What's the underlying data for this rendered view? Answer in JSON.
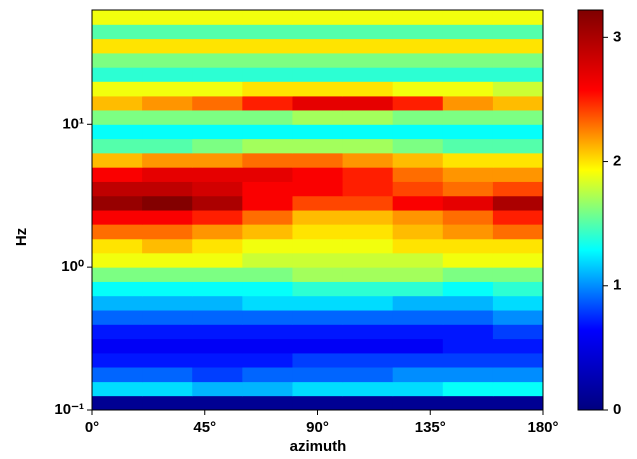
{
  "chart_data": {
    "type": "heatmap",
    "xlabel": "azimuth",
    "ylabel": "Hz",
    "x_bins": [
      0,
      20,
      40,
      60,
      80,
      100,
      120,
      140,
      160,
      180
    ],
    "y_bins": [
      0.1,
      0.126,
      0.158,
      0.2,
      0.251,
      0.316,
      0.398,
      0.501,
      0.631,
      0.794,
      1,
      1.26,
      1.58,
      2,
      2.51,
      3.16,
      3.98,
      5.01,
      6.31,
      7.94,
      10,
      12.6,
      15.8,
      20,
      25.1,
      31.6,
      39.8,
      50.1,
      63.1
    ],
    "values": [
      [
        0.1,
        0.1,
        0.1,
        0.1,
        0.1,
        0.1,
        0.1,
        0.1,
        0.1
      ],
      [
        1.2,
        1.2,
        1.1,
        1.1,
        1.2,
        1.2,
        1.2,
        1.3,
        1.3
      ],
      [
        0.9,
        0.9,
        0.8,
        0.9,
        0.9,
        0.9,
        1.0,
        1.0,
        1.0
      ],
      [
        0.7,
        0.7,
        0.7,
        0.7,
        0.8,
        0.8,
        0.8,
        0.8,
        0.8
      ],
      [
        0.6,
        0.6,
        0.6,
        0.6,
        0.6,
        0.6,
        0.6,
        0.7,
        0.7
      ],
      [
        0.7,
        0.7,
        0.7,
        0.7,
        0.7,
        0.7,
        0.7,
        0.7,
        0.8
      ],
      [
        0.9,
        0.9,
        0.9,
        0.9,
        0.9,
        0.9,
        0.9,
        0.9,
        1.0
      ],
      [
        1.1,
        1.1,
        1.1,
        1.2,
        1.2,
        1.2,
        1.1,
        1.1,
        1.2
      ],
      [
        1.3,
        1.3,
        1.3,
        1.3,
        1.4,
        1.4,
        1.4,
        1.3,
        1.4
      ],
      [
        1.6,
        1.6,
        1.6,
        1.6,
        1.7,
        1.7,
        1.7,
        1.6,
        1.6
      ],
      [
        1.9,
        1.9,
        1.9,
        1.8,
        1.8,
        1.8,
        1.8,
        1.9,
        1.9
      ],
      [
        2.0,
        2.1,
        2.0,
        1.9,
        1.9,
        1.9,
        2.0,
        2.0,
        2.0
      ],
      [
        2.3,
        2.3,
        2.2,
        2.1,
        2.0,
        2.0,
        2.1,
        2.2,
        2.3
      ],
      [
        2.6,
        2.6,
        2.5,
        2.3,
        2.1,
        2.1,
        2.2,
        2.3,
        2.5
      ],
      [
        3.1,
        3.2,
        3.0,
        2.6,
        2.4,
        2.4,
        2.6,
        2.7,
        3.0
      ],
      [
        2.9,
        2.9,
        2.8,
        2.6,
        2.6,
        2.5,
        2.4,
        2.3,
        2.4
      ],
      [
        2.6,
        2.7,
        2.7,
        2.7,
        2.6,
        2.5,
        2.3,
        2.2,
        2.2
      ],
      [
        2.1,
        2.2,
        2.2,
        2.3,
        2.3,
        2.2,
        2.1,
        2.0,
        2.0
      ],
      [
        1.5,
        1.5,
        1.6,
        1.7,
        1.7,
        1.7,
        1.6,
        1.5,
        1.5
      ],
      [
        1.3,
        1.3,
        1.3,
        1.3,
        1.3,
        1.3,
        1.3,
        1.3,
        1.3
      ],
      [
        1.6,
        1.6,
        1.6,
        1.6,
        1.7,
        1.7,
        1.6,
        1.6,
        1.6
      ],
      [
        2.1,
        2.2,
        2.3,
        2.5,
        2.7,
        2.7,
        2.5,
        2.2,
        2.1
      ],
      [
        1.9,
        1.9,
        1.9,
        2.0,
        2.0,
        2.0,
        1.9,
        1.9,
        1.8
      ],
      [
        1.4,
        1.4,
        1.4,
        1.4,
        1.4,
        1.4,
        1.4,
        1.4,
        1.4
      ],
      [
        1.6,
        1.6,
        1.6,
        1.6,
        1.6,
        1.6,
        1.6,
        1.6,
        1.6
      ],
      [
        2.0,
        2.0,
        2.0,
        2.0,
        2.0,
        2.0,
        2.0,
        2.0,
        2.0
      ],
      [
        1.5,
        1.5,
        1.5,
        1.5,
        1.5,
        1.5,
        1.5,
        1.5,
        1.5
      ],
      [
        1.9,
        1.9,
        1.9,
        1.9,
        1.9,
        1.9,
        1.9,
        1.9,
        1.9
      ]
    ],
    "xlim": [
      0,
      180
    ],
    "xticks": [
      {
        "value": 0,
        "label": "0°"
      },
      {
        "value": 45,
        "label": "45°"
      },
      {
        "value": 90,
        "label": "90°"
      },
      {
        "value": 135,
        "label": "135°"
      },
      {
        "value": 180,
        "label": "180°"
      }
    ],
    "ylim": [
      0.1,
      63.1
    ],
    "log_y": true,
    "yticks": [
      {
        "value": 0.1,
        "label": "10⁻¹"
      },
      {
        "value": 1,
        "label": "10⁰"
      },
      {
        "value": 10,
        "label": "10¹"
      }
    ],
    "clim": [
      0,
      3.22
    ],
    "cticks": [
      0,
      1,
      2,
      3
    ],
    "colormap": [
      "#00007f",
      "#0000ff",
      "#00ffff",
      "#ffff00",
      "#ff0000",
      "#7f0000"
    ]
  }
}
